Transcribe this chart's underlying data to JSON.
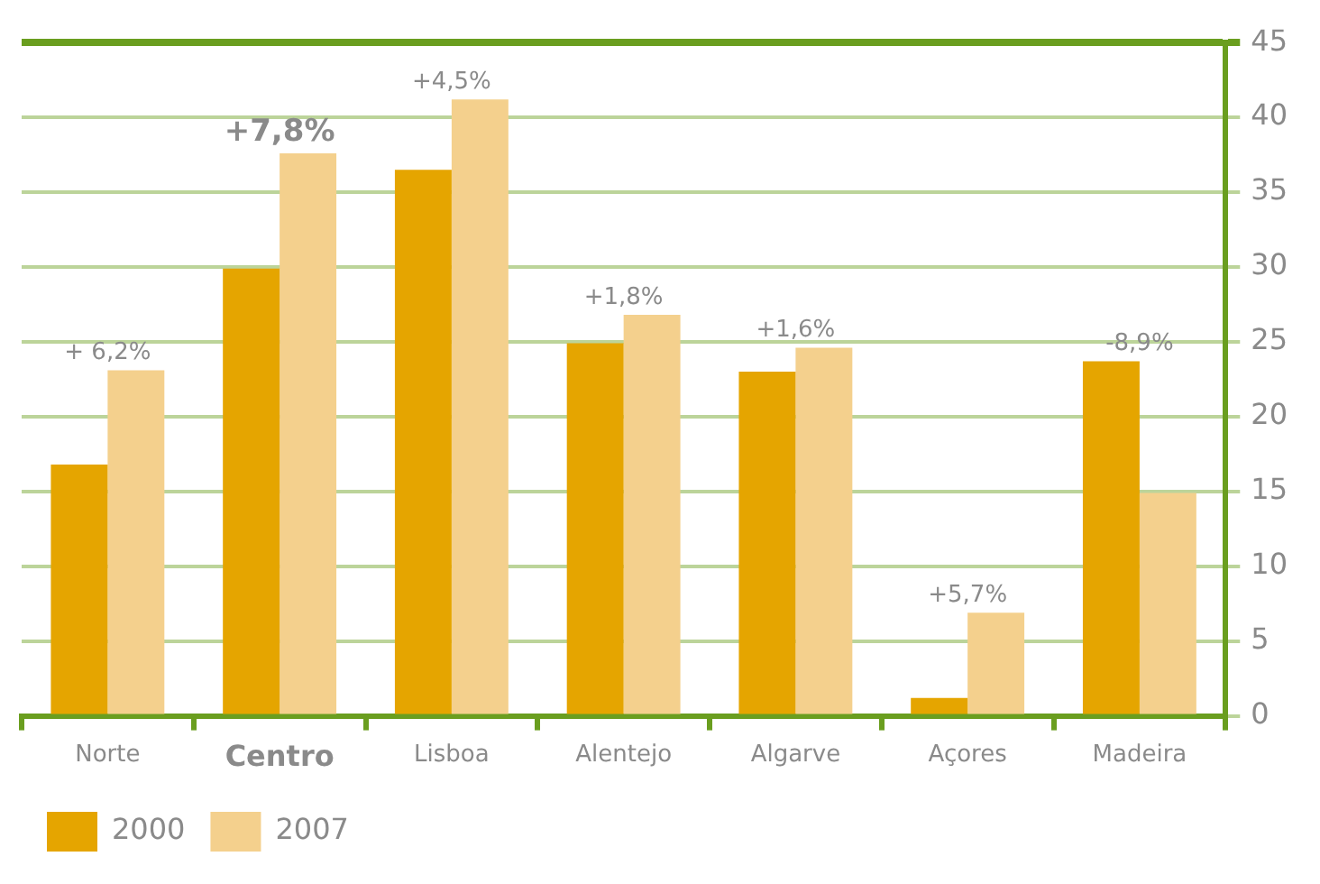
{
  "chart_data": {
    "type": "bar",
    "categories": [
      "Norte",
      "Centro",
      "Lisboa",
      "Alentejo",
      "Algarve",
      "Açores",
      "Madeira"
    ],
    "series": [
      {
        "name": "2000",
        "color": "#e5a500",
        "values": [
          16.8,
          29.9,
          36.5,
          24.9,
          23.0,
          1.2,
          23.7
        ]
      },
      {
        "name": "2007",
        "color": "#f4d08d",
        "values": [
          23.1,
          37.6,
          41.2,
          26.8,
          24.6,
          6.9,
          14.9
        ]
      }
    ],
    "ylim": [
      0,
      45
    ],
    "yticks": [
      0,
      5,
      10,
      15,
      20,
      25,
      30,
      35,
      40,
      45
    ],
    "grid": "y",
    "legend": "bottom left",
    "annotations": [
      {
        "text": "+ 6,2%",
        "x": "Norte",
        "y": 23.1
      },
      {
        "text": "+7,8%",
        "x": "Centro",
        "y": 37.6
      },
      {
        "text": "+4,5%",
        "x": "Lisboa",
        "y": 41.2
      },
      {
        "text": "+1,8%",
        "x": "Alentejo",
        "y": 26.8
      },
      {
        "text": "+1,6%",
        "x": "Algarve",
        "y": 24.6
      },
      {
        "text": "+5,7%",
        "x": "Açores",
        "y": 6.9
      },
      {
        "text": "-8,9%",
        "x": "Madeira",
        "y": 23.7
      }
    ]
  }
}
